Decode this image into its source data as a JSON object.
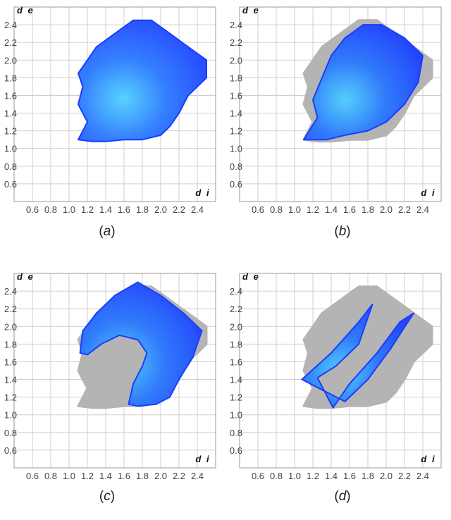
{
  "chart_data": [
    {
      "type": "scatter",
      "panel": "a",
      "caption_label": "a",
      "xlabel": "d i",
      "ylabel": "d e",
      "xlim": [
        0.4,
        2.6
      ],
      "ylim": [
        0.4,
        2.6
      ],
      "x_ticks": [
        "0.6",
        "0.8",
        "1.0",
        "1.2",
        "1.4",
        "1.6",
        "1.8",
        "2.0",
        "2.2",
        "2.4"
      ],
      "y_ticks": [
        "0.6",
        "0.8",
        "1.0",
        "1.2",
        "1.4",
        "1.6",
        "1.8",
        "2.0",
        "2.2",
        "2.4"
      ],
      "grid": true,
      "background_color": "#b4b4b4",
      "highlight_color": "#1a3cff",
      "background_region": [
        [
          1.1,
          1.1
        ],
        [
          1.2,
          1.3
        ],
        [
          1.1,
          1.5
        ],
        [
          1.15,
          1.7
        ],
        [
          1.1,
          1.85
        ],
        [
          1.2,
          2.0
        ],
        [
          1.3,
          2.15
        ],
        [
          1.5,
          2.3
        ],
        [
          1.7,
          2.45
        ],
        [
          1.9,
          2.45
        ],
        [
          2.1,
          2.3
        ],
        [
          2.3,
          2.15
        ],
        [
          2.5,
          2.0
        ],
        [
          2.5,
          1.8
        ],
        [
          2.3,
          1.6
        ],
        [
          2.2,
          1.4
        ],
        [
          2.1,
          1.25
        ],
        [
          2.0,
          1.15
        ],
        [
          1.8,
          1.1
        ],
        [
          1.6,
          1.1
        ],
        [
          1.4,
          1.08
        ],
        [
          1.25,
          1.08
        ]
      ],
      "highlight_region": [
        [
          1.1,
          1.1
        ],
        [
          1.2,
          1.3
        ],
        [
          1.1,
          1.5
        ],
        [
          1.15,
          1.7
        ],
        [
          1.1,
          1.85
        ],
        [
          1.2,
          2.0
        ],
        [
          1.3,
          2.15
        ],
        [
          1.5,
          2.3
        ],
        [
          1.7,
          2.45
        ],
        [
          1.9,
          2.45
        ],
        [
          2.1,
          2.3
        ],
        [
          2.3,
          2.15
        ],
        [
          2.5,
          2.0
        ],
        [
          2.5,
          1.8
        ],
        [
          2.3,
          1.6
        ],
        [
          2.2,
          1.4
        ],
        [
          2.1,
          1.25
        ],
        [
          2.0,
          1.15
        ],
        [
          1.8,
          1.1
        ],
        [
          1.6,
          1.1
        ],
        [
          1.4,
          1.08
        ],
        [
          1.25,
          1.08
        ]
      ]
    },
    {
      "type": "scatter",
      "panel": "b",
      "caption_label": "b",
      "xlabel": "d i",
      "ylabel": "d e",
      "xlim": [
        0.4,
        2.6
      ],
      "ylim": [
        0.4,
        2.6
      ],
      "x_ticks": [
        "0.6",
        "0.8",
        "1.0",
        "1.2",
        "1.4",
        "1.6",
        "1.8",
        "2.0",
        "2.2",
        "2.4"
      ],
      "y_ticks": [
        "0.6",
        "0.8",
        "1.0",
        "1.2",
        "1.4",
        "1.6",
        "1.8",
        "2.0",
        "2.2",
        "2.4"
      ],
      "grid": true,
      "background_color": "#b4b4b4",
      "highlight_color": "#1a3cff",
      "background_region": [
        [
          1.1,
          1.1
        ],
        [
          1.2,
          1.3
        ],
        [
          1.1,
          1.5
        ],
        [
          1.15,
          1.7
        ],
        [
          1.1,
          1.85
        ],
        [
          1.2,
          2.0
        ],
        [
          1.3,
          2.15
        ],
        [
          1.5,
          2.3
        ],
        [
          1.7,
          2.45
        ],
        [
          1.9,
          2.45
        ],
        [
          2.1,
          2.3
        ],
        [
          2.3,
          2.15
        ],
        [
          2.5,
          2.0
        ],
        [
          2.5,
          1.8
        ],
        [
          2.3,
          1.6
        ],
        [
          2.2,
          1.4
        ],
        [
          2.1,
          1.25
        ],
        [
          2.0,
          1.15
        ],
        [
          1.8,
          1.1
        ],
        [
          1.6,
          1.1
        ],
        [
          1.4,
          1.08
        ],
        [
          1.25,
          1.08
        ]
      ],
      "highlight_region": [
        [
          1.1,
          1.1
        ],
        [
          1.25,
          1.35
        ],
        [
          1.2,
          1.55
        ],
        [
          1.3,
          1.8
        ],
        [
          1.4,
          2.05
        ],
        [
          1.55,
          2.25
        ],
        [
          1.75,
          2.4
        ],
        [
          1.95,
          2.4
        ],
        [
          2.2,
          2.25
        ],
        [
          2.4,
          2.05
        ],
        [
          2.35,
          1.75
        ],
        [
          2.2,
          1.5
        ],
        [
          2.0,
          1.3
        ],
        [
          1.8,
          1.2
        ],
        [
          1.55,
          1.15
        ],
        [
          1.35,
          1.1
        ]
      ]
    },
    {
      "type": "scatter",
      "panel": "c",
      "caption_label": "c",
      "xlabel": "d i",
      "ylabel": "d e",
      "xlim": [
        0.4,
        2.6
      ],
      "ylim": [
        0.4,
        2.6
      ],
      "x_ticks": [
        "0.6",
        "0.8",
        "1.0",
        "1.2",
        "1.4",
        "1.6",
        "1.8",
        "2.0",
        "2.2",
        "2.4"
      ],
      "y_ticks": [
        "0.6",
        "0.8",
        "1.0",
        "1.2",
        "1.4",
        "1.6",
        "1.8",
        "2.0",
        "2.2",
        "2.4"
      ],
      "grid": true,
      "background_color": "#b4b4b4",
      "highlight_color": "#1a3cff",
      "background_region": [
        [
          1.1,
          1.1
        ],
        [
          1.2,
          1.3
        ],
        [
          1.1,
          1.5
        ],
        [
          1.15,
          1.7
        ],
        [
          1.1,
          1.85
        ],
        [
          1.2,
          2.0
        ],
        [
          1.3,
          2.15
        ],
        [
          1.5,
          2.3
        ],
        [
          1.7,
          2.45
        ],
        [
          1.9,
          2.45
        ],
        [
          2.1,
          2.3
        ],
        [
          2.3,
          2.15
        ],
        [
          2.5,
          2.0
        ],
        [
          2.5,
          1.8
        ],
        [
          2.3,
          1.6
        ],
        [
          2.2,
          1.4
        ],
        [
          2.1,
          1.25
        ],
        [
          2.0,
          1.15
        ],
        [
          1.8,
          1.1
        ],
        [
          1.6,
          1.1
        ],
        [
          1.4,
          1.08
        ],
        [
          1.25,
          1.08
        ]
      ],
      "highlight_region": [
        [
          1.12,
          1.7
        ],
        [
          1.15,
          1.95
        ],
        [
          1.3,
          2.15
        ],
        [
          1.5,
          2.35
        ],
        [
          1.75,
          2.5
        ],
        [
          2.0,
          2.35
        ],
        [
          2.25,
          2.15
        ],
        [
          2.45,
          1.95
        ],
        [
          2.35,
          1.65
        ],
        [
          2.2,
          1.4
        ],
        [
          2.1,
          1.2
        ],
        [
          1.95,
          1.12
        ],
        [
          1.75,
          1.1
        ],
        [
          1.65,
          1.12
        ],
        [
          1.7,
          1.35
        ],
        [
          1.8,
          1.55
        ],
        [
          1.85,
          1.7
        ],
        [
          1.75,
          1.85
        ],
        [
          1.55,
          1.9
        ],
        [
          1.35,
          1.8
        ],
        [
          1.2,
          1.68
        ]
      ]
    },
    {
      "type": "scatter",
      "panel": "d",
      "caption_label": "d",
      "xlabel": "d i",
      "ylabel": "d e",
      "xlim": [
        0.4,
        2.6
      ],
      "ylim": [
        0.4,
        2.6
      ],
      "x_ticks": [
        "0.6",
        "0.8",
        "1.0",
        "1.2",
        "1.4",
        "1.6",
        "1.8",
        "2.0",
        "2.2",
        "2.4"
      ],
      "y_ticks": [
        "0.6",
        "0.8",
        "1.0",
        "1.2",
        "1.4",
        "1.6",
        "1.8",
        "2.0",
        "2.2",
        "2.4"
      ],
      "grid": true,
      "background_color": "#b4b4b4",
      "highlight_color": "#1a3cff",
      "background_region": [
        [
          1.1,
          1.1
        ],
        [
          1.2,
          1.3
        ],
        [
          1.1,
          1.5
        ],
        [
          1.15,
          1.7
        ],
        [
          1.1,
          1.85
        ],
        [
          1.2,
          2.0
        ],
        [
          1.3,
          2.15
        ],
        [
          1.5,
          2.3
        ],
        [
          1.7,
          2.45
        ],
        [
          1.9,
          2.45
        ],
        [
          2.1,
          2.3
        ],
        [
          2.3,
          2.15
        ],
        [
          2.5,
          2.0
        ],
        [
          2.5,
          1.8
        ],
        [
          2.3,
          1.6
        ],
        [
          2.2,
          1.4
        ],
        [
          2.1,
          1.25
        ],
        [
          2.0,
          1.15
        ],
        [
          1.8,
          1.1
        ],
        [
          1.6,
          1.1
        ],
        [
          1.4,
          1.08
        ],
        [
          1.25,
          1.08
        ]
      ],
      "highlight_region": [
        [
          1.08,
          1.4
        ],
        [
          1.4,
          1.7
        ],
        [
          1.7,
          2.05
        ],
        [
          1.85,
          2.25
        ],
        [
          1.7,
          1.8
        ],
        [
          1.45,
          1.55
        ],
        [
          1.25,
          1.42
        ],
        [
          1.42,
          1.08
        ],
        [
          1.6,
          1.35
        ],
        [
          1.9,
          1.7
        ],
        [
          2.15,
          2.05
        ],
        [
          2.3,
          2.15
        ],
        [
          2.05,
          1.75
        ],
        [
          1.8,
          1.4
        ],
        [
          1.55,
          1.15
        ]
      ]
    }
  ]
}
